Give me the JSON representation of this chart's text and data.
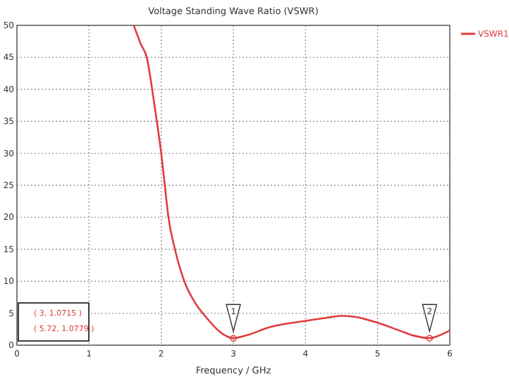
{
  "chart_data": {
    "type": "line",
    "title": "Voltage Standing Wave Ratio (VSWR)",
    "xlabel": "Frequency / GHz",
    "x": [
      1.62,
      1.72,
      1.8,
      1.875,
      1.94,
      2.0,
      2.05,
      2.1,
      2.19,
      2.32,
      2.45,
      2.65,
      2.8,
      3.0,
      3.2,
      3.5,
      4.0,
      4.3,
      4.5,
      4.7,
      5.0,
      5.3,
      5.5,
      5.72,
      5.85,
      6.0
    ],
    "series": [
      {
        "name": "VSWR1",
        "color": "#e03c3c",
        "values": [
          50,
          47,
          45,
          40,
          35,
          30,
          25,
          20,
          15,
          10,
          7,
          4,
          2.2,
          1.1,
          1.6,
          2.8,
          3.8,
          4.3,
          4.6,
          4.4,
          3.5,
          2.3,
          1.5,
          1.1,
          1.5,
          2.3
        ]
      }
    ],
    "annotations": [
      {
        "text": "1",
        "x": 3,
        "y": 1.0715
      },
      {
        "text": "2",
        "x": 5.72,
        "y": 1.0779
      },
      "( 3, 1.0715 )",
      "( 5.72, 1.0779 )"
    ],
    "xlim": [
      0,
      6
    ],
    "ylim": [
      0,
      50
    ],
    "xticks": [
      0,
      1,
      2,
      3,
      4,
      5,
      6
    ],
    "yticks": [
      0,
      5,
      10,
      15,
      20,
      25,
      30,
      35,
      40,
      45,
      50
    ],
    "grid": true,
    "legend": "top right",
    "line_style": "solid",
    "marker": "none"
  }
}
